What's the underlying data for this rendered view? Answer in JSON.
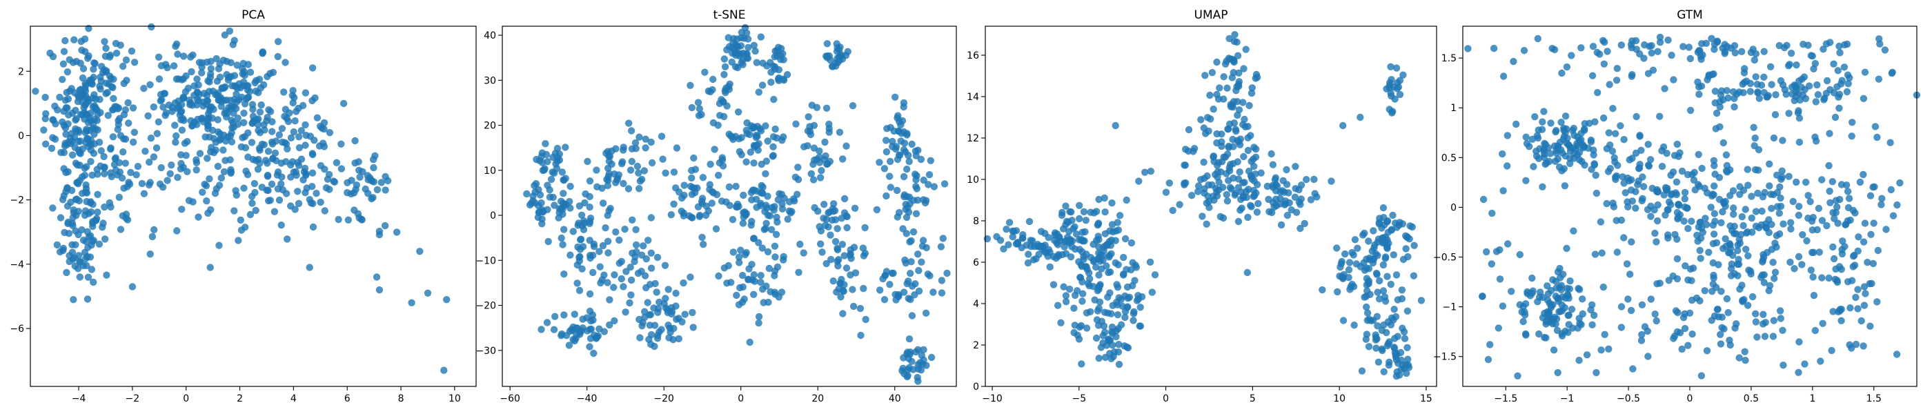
{
  "colors": {
    "points": "#1f77b4",
    "axes": "#000000",
    "background": "#ffffff"
  },
  "chart_data": [
    {
      "type": "scatter",
      "title": "PCA",
      "xlim": [
        -5.8,
        10.8
      ],
      "ylim": [
        -7.8,
        3.4
      ],
      "xticks": [
        -4,
        -2,
        0,
        2,
        4,
        6,
        8,
        10
      ],
      "yticks": [
        -6,
        -4,
        -2,
        0,
        2
      ],
      "clusters": [
        {
          "cx": -3.6,
          "cy": 0.6,
          "sx": 0.8,
          "sy": 1.3,
          "n": 260
        },
        {
          "cx": 1.2,
          "cy": 1.2,
          "sx": 1.3,
          "sy": 0.8,
          "n": 230
        },
        {
          "cx": 3.6,
          "cy": -0.5,
          "sx": 1.3,
          "sy": 1.1,
          "n": 150
        },
        {
          "cx": -3.9,
          "cy": -3.0,
          "sx": 0.5,
          "sy": 1.0,
          "n": 80
        },
        {
          "cx": 0.2,
          "cy": -1.5,
          "sx": 1.6,
          "sy": 1.1,
          "n": 90
        },
        {
          "cx": 6.5,
          "cy": -1.8,
          "sx": 0.6,
          "sy": 0.6,
          "n": 40
        }
      ],
      "extra_points": [
        [
          9.6,
          -7.3
        ],
        [
          8.7,
          -3.6
        ],
        [
          9.0,
          -4.9
        ],
        [
          9.7,
          -5.1
        ],
        [
          7.1,
          -4.4
        ],
        [
          7.2,
          -4.8
        ],
        [
          8.4,
          -5.2
        ],
        [
          -2.0,
          -4.7
        ],
        [
          0.9,
          -4.1
        ],
        [
          4.6,
          -4.1
        ],
        [
          -4.2,
          -5.1
        ]
      ]
    },
    {
      "type": "scatter",
      "title": "t-SNE",
      "xlim": [
        -62,
        56
      ],
      "ylim": [
        -38,
        42
      ],
      "xticks": [
        -60,
        -40,
        -20,
        0,
        20,
        40
      ],
      "yticks": [
        -30,
        -20,
        -10,
        0,
        10,
        20,
        30,
        40
      ],
      "clusters": [
        {
          "cx": 0,
          "cy": 37,
          "sx": 2,
          "sy": 2,
          "n": 40
        },
        {
          "cx": 9,
          "cy": 33,
          "sx": 2,
          "sy": 3,
          "n": 30
        },
        {
          "cx": 24,
          "cy": 35,
          "sx": 2,
          "sy": 1.5,
          "n": 25
        },
        {
          "cx": -6,
          "cy": 28,
          "sx": 3,
          "sy": 3,
          "n": 25
        },
        {
          "cx": 3,
          "cy": 17,
          "sx": 5,
          "sy": 3,
          "n": 50
        },
        {
          "cx": 20,
          "cy": 16,
          "sx": 3,
          "sy": 5,
          "n": 40
        },
        {
          "cx": 40,
          "cy": 16,
          "sx": 3,
          "sy": 5,
          "n": 40
        },
        {
          "cx": -30,
          "cy": 11,
          "sx": 5,
          "sy": 4,
          "n": 50
        },
        {
          "cx": -50,
          "cy": 12,
          "sx": 2,
          "sy": 2,
          "n": 25
        },
        {
          "cx": -50,
          "cy": 3,
          "sx": 4,
          "sy": 3,
          "n": 45
        },
        {
          "cx": -40,
          "cy": -6,
          "sx": 4,
          "sy": 5,
          "n": 55
        },
        {
          "cx": -11,
          "cy": 4,
          "sx": 4,
          "sy": 5,
          "n": 50
        },
        {
          "cx": 5,
          "cy": 2,
          "sx": 5,
          "sy": 3,
          "n": 60
        },
        {
          "cx": 24,
          "cy": 0,
          "sx": 3,
          "sy": 2,
          "n": 25
        },
        {
          "cx": 45,
          "cy": 3,
          "sx": 3,
          "sy": 5,
          "n": 40
        },
        {
          "cx": -28,
          "cy": -11,
          "sx": 4,
          "sy": 5,
          "n": 40
        },
        {
          "cx": 5,
          "cy": -12,
          "sx": 5,
          "sy": 5,
          "n": 60
        },
        {
          "cx": 27,
          "cy": -12,
          "sx": 3,
          "sy": 5,
          "n": 40
        },
        {
          "cx": 44,
          "cy": -14,
          "sx": 5,
          "sy": 5,
          "n": 45
        },
        {
          "cx": -42,
          "cy": -25,
          "sx": 4,
          "sy": 2,
          "n": 45
        },
        {
          "cx": -20,
          "cy": -23,
          "sx": 4,
          "sy": 3,
          "n": 50
        },
        {
          "cx": 45,
          "cy": -32,
          "sx": 2,
          "sy": 2,
          "n": 30
        }
      ],
      "extra_points": []
    },
    {
      "type": "scatter",
      "title": "UMAP",
      "xlim": [
        -10.4,
        15.6
      ],
      "ylim": [
        0,
        17.4
      ],
      "xticks": [
        -10,
        -5,
        0,
        5,
        10,
        15
      ],
      "yticks": [
        0,
        2,
        4,
        6,
        8,
        10,
        12,
        14,
        16
      ],
      "clusters": [
        {
          "cx": -7,
          "cy": 7.0,
          "sx": 1.4,
          "sy": 0.5,
          "n": 70
        },
        {
          "cx": -4.2,
          "cy": 7.0,
          "sx": 1.3,
          "sy": 1.0,
          "n": 90
        },
        {
          "cx": -3.3,
          "cy": 4.3,
          "sx": 1.3,
          "sy": 1.2,
          "n": 100
        },
        {
          "cx": -3.2,
          "cy": 2.0,
          "sx": 0.5,
          "sy": 0.6,
          "n": 25
        },
        {
          "cx": 4.0,
          "cy": 15.0,
          "sx": 0.7,
          "sy": 1.0,
          "n": 40
        },
        {
          "cx": 3.5,
          "cy": 12.0,
          "sx": 1.0,
          "sy": 1.2,
          "n": 60
        },
        {
          "cx": 4.0,
          "cy": 9.8,
          "sx": 1.9,
          "sy": 0.8,
          "n": 110
        },
        {
          "cx": 7.0,
          "cy": 8.8,
          "sx": 0.8,
          "sy": 0.6,
          "n": 30
        },
        {
          "cx": 13.1,
          "cy": 14.3,
          "sx": 0.3,
          "sy": 0.6,
          "n": 20
        },
        {
          "cx": 12.7,
          "cy": 7.6,
          "sx": 0.9,
          "sy": 0.6,
          "n": 40
        },
        {
          "cx": 11.5,
          "cy": 5.5,
          "sx": 1.0,
          "sy": 0.9,
          "n": 70
        },
        {
          "cx": 12.5,
          "cy": 2.6,
          "sx": 0.8,
          "sy": 1.0,
          "n": 50
        },
        {
          "cx": 13.3,
          "cy": 1.1,
          "sx": 0.4,
          "sy": 0.3,
          "n": 20
        }
      ],
      "extra_points": [
        [
          -2.9,
          12.6
        ],
        [
          11.2,
          13.0
        ],
        [
          10.2,
          12.6
        ],
        [
          4.7,
          5.5
        ],
        [
          0.4,
          8.5
        ]
      ]
    },
    {
      "type": "scatter",
      "title": "GTM",
      "xlim": [
        -1.85,
        1.85
      ],
      "ylim": [
        -1.8,
        1.82
      ],
      "xticks": [
        -1.5,
        -1.0,
        -0.5,
        0.0,
        0.5,
        1.0,
        1.5
      ],
      "yticks": [
        -1.5,
        -1.0,
        -0.5,
        0.0,
        0.5,
        1.0,
        1.5
      ],
      "clusters": [
        {
          "cx": -1.0,
          "cy": 0.6,
          "sx": 0.15,
          "sy": 0.15,
          "n": 90
        },
        {
          "cx": -1.1,
          "cy": -1.0,
          "sx": 0.18,
          "sy": 0.2,
          "n": 90
        },
        {
          "cx": 0.5,
          "cy": 0.0,
          "sx": 0.35,
          "sy": 0.35,
          "n": 140
        },
        {
          "cx": -0.3,
          "cy": 0.1,
          "sx": 0.25,
          "sy": 0.3,
          "n": 100
        },
        {
          "cx": 0.7,
          "cy": 1.2,
          "sx": 0.5,
          "sy": 0.12,
          "n": 90
        },
        {
          "cx": 0.0,
          "cy": 1.6,
          "sx": 0.8,
          "sy": 0.05,
          "n": 60
        },
        {
          "cx": 0.3,
          "cy": -0.9,
          "sx": 0.45,
          "sy": 0.3,
          "n": 90
        },
        {
          "cx": 1.3,
          "cy": -0.3,
          "sx": 0.2,
          "sy": 0.6,
          "n": 60
        }
      ],
      "uniform_points": 220,
      "extra_points": []
    }
  ],
  "panels": [
    {
      "title": "PCA"
    },
    {
      "title": "t-SNE"
    },
    {
      "title": "UMAP"
    },
    {
      "title": "GTM"
    }
  ]
}
